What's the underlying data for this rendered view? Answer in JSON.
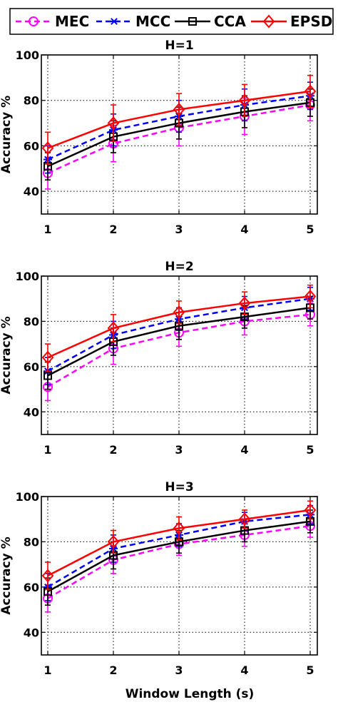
{
  "legend": {
    "placement": "top",
    "entries": [
      {
        "label": "MEC",
        "color": "#ff00ff",
        "dash": "dashed",
        "marker": "circle"
      },
      {
        "label": "MCC",
        "color": "#0000ff",
        "dash": "dashed",
        "marker": "asterisk"
      },
      {
        "label": "CCA",
        "color": "#000000",
        "dash": "solid",
        "marker": "square"
      },
      {
        "label": "EPSD",
        "color": "#ff0000",
        "dash": "solid",
        "marker": "diamond"
      }
    ]
  },
  "xlabel": "Window Length (s)",
  "chart_data": [
    {
      "type": "line",
      "title": "H=1",
      "ylabel": "Accuracy %",
      "x": [
        1,
        2,
        3,
        4,
        5
      ],
      "xlim": [
        1,
        5
      ],
      "ylim": [
        30,
        100
      ],
      "yticks": [
        40,
        60,
        80,
        100
      ],
      "grid": true,
      "series": [
        {
          "name": "MEC",
          "values": [
            48,
            61,
            68,
            73,
            78
          ],
          "err": [
            7,
            8,
            8,
            8,
            7
          ]
        },
        {
          "name": "MCC",
          "values": [
            54,
            67,
            73,
            78,
            82
          ],
          "err": [
            6,
            7,
            7,
            7,
            6
          ]
        },
        {
          "name": "CCA",
          "values": [
            51,
            64,
            70,
            75,
            79
          ],
          "err": [
            6,
            7,
            7,
            7,
            6
          ]
        },
        {
          "name": "EPSD",
          "values": [
            59,
            70,
            76,
            80,
            84
          ],
          "err": [
            7,
            8,
            7,
            7,
            7
          ]
        }
      ]
    },
    {
      "type": "line",
      "title": "H=2",
      "ylabel": "Accuracy %",
      "x": [
        1,
        2,
        3,
        4,
        5
      ],
      "xlim": [
        1,
        5
      ],
      "ylim": [
        30,
        100
      ],
      "yticks": [
        40,
        60,
        80,
        100
      ],
      "grid": true,
      "series": [
        {
          "name": "MEC",
          "values": [
            51,
            68,
            75,
            80,
            83
          ],
          "err": [
            6,
            7,
            6,
            6,
            5
          ]
        },
        {
          "name": "MCC",
          "values": [
            58,
            74,
            81,
            86,
            90
          ],
          "err": [
            6,
            6,
            5,
            5,
            5
          ]
        },
        {
          "name": "CCA",
          "values": [
            56,
            71,
            78,
            82,
            86
          ],
          "err": [
            6,
            6,
            6,
            5,
            5
          ]
        },
        {
          "name": "EPSD",
          "values": [
            64,
            77,
            84,
            88,
            91
          ],
          "err": [
            6,
            6,
            5,
            5,
            5
          ]
        }
      ]
    },
    {
      "type": "line",
      "title": "H=3",
      "ylabel": "Accuracy %",
      "x": [
        1,
        2,
        3,
        4,
        5
      ],
      "xlim": [
        1,
        5
      ],
      "ylim": [
        30,
        100
      ],
      "yticks": [
        40,
        60,
        80,
        100
      ],
      "xticks": [
        1,
        2,
        3,
        4,
        5
      ],
      "grid": true,
      "series": [
        {
          "name": "MEC",
          "values": [
            55,
            72,
            79,
            83,
            87
          ],
          "err": [
            6,
            6,
            5,
            5,
            5
          ]
        },
        {
          "name": "MCC",
          "values": [
            60,
            77,
            83,
            89,
            92
          ],
          "err": [
            6,
            6,
            5,
            4,
            4
          ]
        },
        {
          "name": "CCA",
          "values": [
            58,
            74,
            80,
            85,
            89
          ],
          "err": [
            6,
            6,
            5,
            5,
            5
          ]
        },
        {
          "name": "EPSD",
          "values": [
            65,
            80,
            86,
            90,
            94
          ],
          "err": [
            6,
            5,
            5,
            4,
            4
          ]
        }
      ]
    }
  ]
}
